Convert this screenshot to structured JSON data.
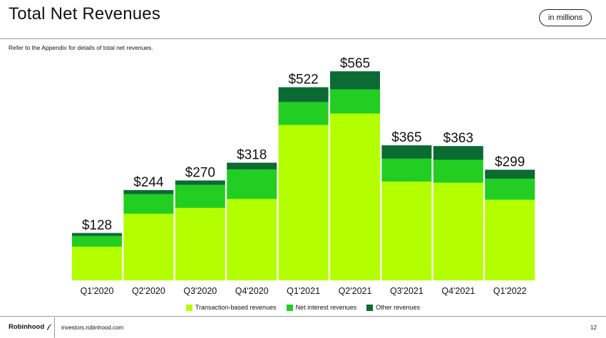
{
  "header": {
    "title": "Total Net Revenues",
    "badge": "in millions",
    "subtitle": "Refer to the Appendix for details of total net revenues."
  },
  "footer": {
    "brand": "Robinhood",
    "url": "investors.robinhood.com",
    "page_number": "12"
  },
  "chart_data": {
    "type": "bar",
    "stacked": true,
    "title": "Total Net Revenues",
    "xlabel": "",
    "ylabel": "",
    "ylim": [
      0,
      600
    ],
    "grid": false,
    "legend_position": "bottom-center",
    "categories": [
      "Q1'2020",
      "Q2'2020",
      "Q3'2020",
      "Q4'2020",
      "Q1'2021",
      "Q2'2021",
      "Q3'2021",
      "Q4'2021",
      "Q1'2022"
    ],
    "totals": [
      "$128",
      "$244",
      "$270",
      "$318",
      "$522",
      "$565",
      "$365",
      "$363",
      "$299"
    ],
    "series": [
      {
        "name": "Transaction-based revenues",
        "color": "#b3ff00",
        "values": [
          91,
          180,
          196,
          220,
          420,
          451,
          267,
          264,
          218
        ]
      },
      {
        "name": "Net interest revenues",
        "color": "#21ce21",
        "values": [
          29,
          53,
          62,
          80,
          62,
          65,
          62,
          62,
          57
        ]
      },
      {
        "name": "Other revenues",
        "color": "#0b6b33",
        "values": [
          8,
          11,
          12,
          18,
          40,
          49,
          36,
          37,
          24
        ]
      }
    ]
  }
}
